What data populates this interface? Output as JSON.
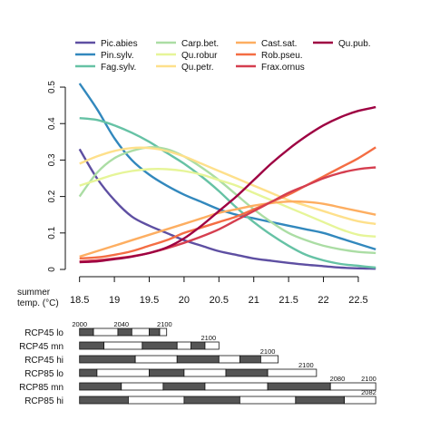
{
  "chart_data": [
    {
      "type": "line",
      "xlabel": "summer temp. (°C)",
      "xlabel_lines": [
        "summer",
        "temp. (°C)"
      ],
      "xlim": [
        18.4,
        22.8
      ],
      "ylim": [
        0,
        0.52
      ],
      "xticks": [
        18.5,
        19,
        19.5,
        20,
        20.5,
        21,
        21.5,
        22,
        22.5
      ],
      "xtick_labels": [
        "18.5",
        "19",
        "19.5",
        "20",
        "20.5",
        "21",
        "21.5",
        "22",
        "22.5"
      ],
      "yticks": [
        0,
        0.1,
        0.2,
        0.3,
        0.4,
        0.5
      ],
      "ytick_labels": [
        "0",
        "0.1",
        "0.2",
        "0.3",
        "0.4",
        "0.5"
      ],
      "grid": false,
      "legend_position": "top",
      "x": [
        18.5,
        18.75,
        19,
        19.25,
        19.5,
        19.75,
        20,
        20.25,
        20.5,
        20.75,
        21,
        21.25,
        21.5,
        21.75,
        22,
        22.25,
        22.5,
        22.75
      ],
      "series": [
        {
          "name": "Pic.abies",
          "color": "#5e4fa2",
          "values": [
            0.33,
            0.25,
            0.19,
            0.145,
            0.12,
            0.1,
            0.08,
            0.065,
            0.05,
            0.04,
            0.03,
            0.024,
            0.018,
            0.013,
            0.009,
            0.005,
            0.003,
            0.002
          ]
        },
        {
          "name": "Pin.sylv.",
          "color": "#3288bd",
          "values": [
            0.51,
            0.44,
            0.36,
            0.3,
            0.26,
            0.23,
            0.205,
            0.185,
            0.165,
            0.15,
            0.14,
            0.13,
            0.12,
            0.11,
            0.1,
            0.085,
            0.07,
            0.055
          ]
        },
        {
          "name": "Fag.sylv.",
          "color": "#66c2a5",
          "values": [
            0.415,
            0.41,
            0.395,
            0.375,
            0.35,
            0.32,
            0.29,
            0.255,
            0.215,
            0.17,
            0.13,
            0.095,
            0.065,
            0.04,
            0.025,
            0.015,
            0.01,
            0.005
          ]
        },
        {
          "name": "Carp.bet.",
          "color": "#abdda4",
          "values": [
            0.2,
            0.265,
            0.305,
            0.325,
            0.335,
            0.33,
            0.31,
            0.28,
            0.245,
            0.205,
            0.165,
            0.13,
            0.1,
            0.08,
            0.065,
            0.055,
            0.048,
            0.045
          ]
        },
        {
          "name": "Qu.robur",
          "color": "#e6f598",
          "values": [
            0.23,
            0.245,
            0.26,
            0.27,
            0.275,
            0.275,
            0.27,
            0.26,
            0.245,
            0.23,
            0.21,
            0.19,
            0.17,
            0.15,
            0.13,
            0.11,
            0.095,
            0.09
          ]
        },
        {
          "name": "Qu.petr.",
          "color": "#fee08b",
          "values": [
            0.29,
            0.31,
            0.325,
            0.333,
            0.333,
            0.325,
            0.31,
            0.29,
            0.27,
            0.25,
            0.23,
            0.21,
            0.19,
            0.175,
            0.16,
            0.145,
            0.132,
            0.125
          ]
        },
        {
          "name": "Cast.sat.",
          "color": "#fdae61",
          "values": [
            0.035,
            0.05,
            0.065,
            0.08,
            0.095,
            0.11,
            0.125,
            0.14,
            0.155,
            0.165,
            0.175,
            0.182,
            0.186,
            0.185,
            0.18,
            0.17,
            0.16,
            0.15
          ]
        },
        {
          "name": "Rob.pseu.",
          "color": "#f46d43",
          "values": [
            0.03,
            0.033,
            0.04,
            0.05,
            0.065,
            0.08,
            0.1,
            0.115,
            0.13,
            0.145,
            0.165,
            0.185,
            0.205,
            0.23,
            0.255,
            0.28,
            0.305,
            0.335
          ]
        },
        {
          "name": "Frax.ornus",
          "color": "#d53e4f",
          "values": [
            0.022,
            0.025,
            0.03,
            0.036,
            0.045,
            0.058,
            0.073,
            0.09,
            0.11,
            0.135,
            0.16,
            0.185,
            0.21,
            0.23,
            0.25,
            0.265,
            0.275,
            0.28
          ]
        },
        {
          "name": "Qu.pub.",
          "color": "#9e0142",
          "values": [
            0.02,
            0.022,
            0.028,
            0.035,
            0.045,
            0.06,
            0.085,
            0.12,
            0.16,
            0.2,
            0.245,
            0.29,
            0.33,
            0.365,
            0.395,
            0.418,
            0.435,
            0.445
          ]
        }
      ]
    },
    {
      "type": "timeline",
      "xlim": [
        18.4,
        22.8
      ],
      "rows": [
        {
          "label": "RCP45 lo",
          "segments": [
            [
              18.5,
              18.7
            ],
            [
              18.7,
              19.05
            ],
            [
              19.05,
              19.25
            ],
            [
              19.25,
              19.5
            ],
            [
              19.5,
              19.65
            ],
            [
              19.65,
              19.75
            ]
          ],
          "annotations": [
            {
              "text": "2000",
              "x": 18.5
            },
            {
              "text": "2040",
              "x": 19.1
            },
            {
              "text": "2100",
              "x": 19.72
            }
          ]
        },
        {
          "label": "RCP45 mn",
          "segments": [
            [
              18.5,
              18.85
            ],
            [
              18.85,
              19.4
            ],
            [
              19.4,
              19.9
            ],
            [
              19.9,
              20.1
            ],
            [
              20.1,
              20.3
            ],
            [
              20.3,
              20.5
            ]
          ],
          "annotations": [
            {
              "text": "2100",
              "x": 20.35
            }
          ]
        },
        {
          "label": "RCP45 hi",
          "segments": [
            [
              18.5,
              19.3
            ],
            [
              19.3,
              19.9
            ],
            [
              19.9,
              20.5
            ],
            [
              20.5,
              20.8
            ],
            [
              20.8,
              21.1
            ],
            [
              21.1,
              21.35
            ]
          ],
          "annotations": [
            {
              "text": "2100",
              "x": 21.2
            }
          ]
        },
        {
          "label": "RCP85 lo",
          "segments": [
            [
              18.5,
              18.75
            ],
            [
              18.75,
              19.5
            ],
            [
              19.5,
              20
            ],
            [
              20,
              20.6
            ],
            [
              20.6,
              21.2
            ],
            [
              21.2,
              21.9
            ]
          ],
          "annotations": [
            {
              "text": "2100",
              "x": 21.75
            }
          ]
        },
        {
          "label": "RCP85 mn",
          "segments": [
            [
              18.5,
              19.1
            ],
            [
              19.1,
              19.7
            ],
            [
              19.7,
              20.3
            ],
            [
              20.3,
              21.2
            ],
            [
              21.2,
              22.1
            ],
            [
              22.1,
              22.75
            ]
          ],
          "annotations": [
            {
              "text": "2080",
              "x": 22.2
            },
            {
              "text": "2100",
              "x": 22.65
            }
          ]
        },
        {
          "label": "RCP85 hi",
          "segments": [
            [
              18.5,
              19.2
            ],
            [
              19.2,
              20
            ],
            [
              20,
              20.8
            ],
            [
              20.8,
              21.6
            ],
            [
              21.6,
              22.3
            ],
            [
              22.3,
              22.75
            ]
          ],
          "annotations": [
            {
              "text": "2082",
              "x": 22.65
            }
          ]
        }
      ]
    }
  ],
  "colors": {
    "axis": "#111111",
    "segment_dark": "#555555",
    "segment_light": "#ffffff"
  }
}
